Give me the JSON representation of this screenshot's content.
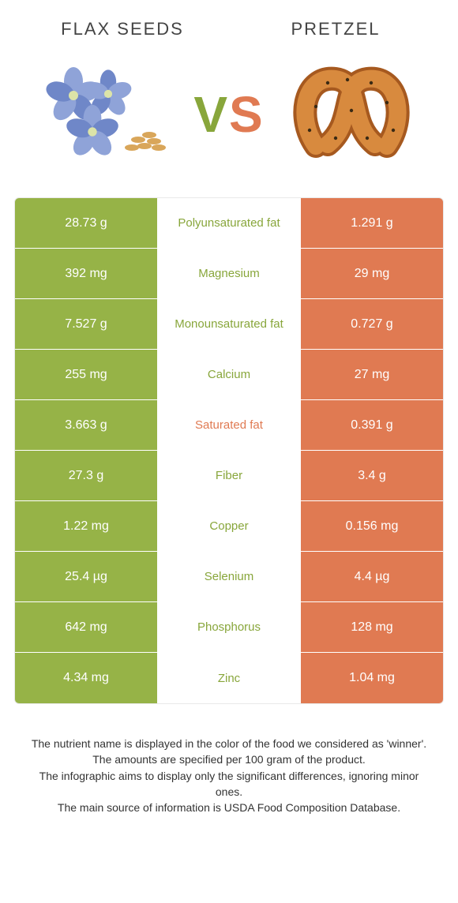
{
  "header": {
    "left_title": "Flax seeds",
    "right_title": "Pretzel"
  },
  "vs": {
    "v": "V",
    "s": "S"
  },
  "colors": {
    "left_bg": "#96b347",
    "right_bg": "#e07a52",
    "left_text": "#88a63b",
    "right_text": "#e07a52",
    "mid_bg": "#ffffff",
    "border": "#e9e9e9",
    "flax_petal": "#8fa3d8",
    "flax_petal_dark": "#6f87c8",
    "flax_center": "#dce4a8",
    "flax_seed": "#d9a65a",
    "pretzel_fill": "#d88a3e",
    "pretzel_edge": "#a6591f",
    "pretzel_salt": "#3a2a14"
  },
  "rows": [
    {
      "left": "28.73 g",
      "label": "Polyunsaturated fat",
      "right": "1.291 g",
      "winner": "left"
    },
    {
      "left": "392 mg",
      "label": "Magnesium",
      "right": "29 mg",
      "winner": "left"
    },
    {
      "left": "7.527 g",
      "label": "Monounsaturated fat",
      "right": "0.727 g",
      "winner": "left"
    },
    {
      "left": "255 mg",
      "label": "Calcium",
      "right": "27 mg",
      "winner": "left"
    },
    {
      "left": "3.663 g",
      "label": "Saturated fat",
      "right": "0.391 g",
      "winner": "right"
    },
    {
      "left": "27.3 g",
      "label": "Fiber",
      "right": "3.4 g",
      "winner": "left"
    },
    {
      "left": "1.22 mg",
      "label": "Copper",
      "right": "0.156 mg",
      "winner": "left"
    },
    {
      "left": "25.4 µg",
      "label": "Selenium",
      "right": "4.4 µg",
      "winner": "left"
    },
    {
      "left": "642 mg",
      "label": "Phosphorus",
      "right": "128 mg",
      "winner": "left"
    },
    {
      "left": "4.34 mg",
      "label": "Zinc",
      "right": "1.04 mg",
      "winner": "left"
    }
  ],
  "footer": {
    "line1": "The nutrient name is displayed in the color of the food we considered as 'winner'.",
    "line2": "The amounts are specified per 100 gram of the product.",
    "line3": "The infographic aims to display only the significant differences, ignoring minor ones.",
    "line4": "The main source of information is USDA Food Composition Database."
  }
}
